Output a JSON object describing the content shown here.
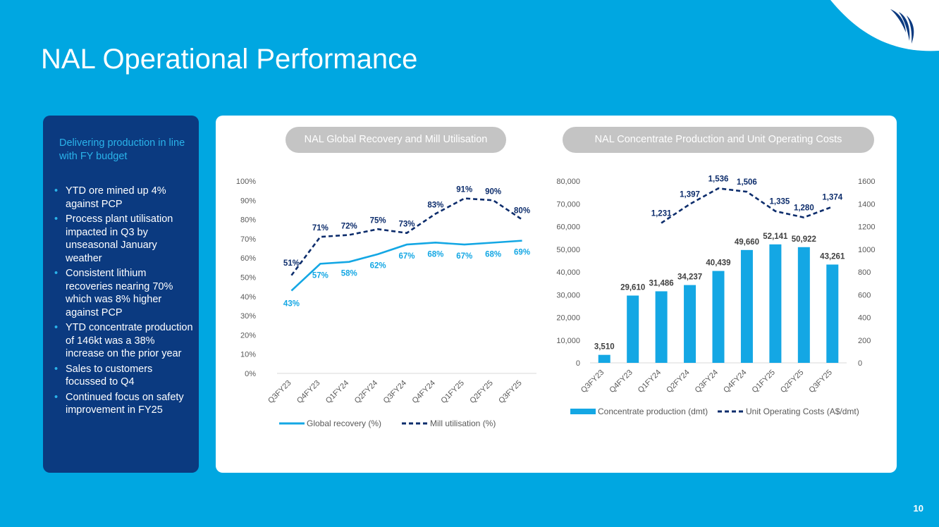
{
  "page": {
    "title": "NAL Operational Performance",
    "page_number": "10"
  },
  "sidebar": {
    "heading": "Delivering production in line with FY budget",
    "bullets": [
      "YTD ore mined up 4% against PCP",
      "Process plant utilisation impacted in Q3 by unseasonal January weather",
      "Consistent lithium recoveries nearing 70% which was 8% higher against PCP",
      "YTD concentrate production of 146kt was a 38% increase on the prior year",
      "Sales to customers focussed to Q4",
      "Continued focus on safety improvement in FY25"
    ]
  },
  "colors": {
    "background": "#00a7e1",
    "navy": "#0b3a80",
    "cyan": "#14a7e4",
    "dark_line": "#0d2d6c"
  },
  "chart_data": [
    {
      "type": "line",
      "title": "NAL Global Recovery and Mill Utilisation",
      "categories": [
        "Q3FY23",
        "Q4FY23",
        "Q1FY24",
        "Q2FY24",
        "Q3FY24",
        "Q4FY24",
        "Q1FY25",
        "Q2FY25",
        "Q3FY25"
      ],
      "yticks": [
        "0%",
        "10%",
        "20%",
        "30%",
        "40%",
        "50%",
        "60%",
        "70%",
        "80%",
        "90%",
        "100%"
      ],
      "ylim": [
        0,
        100
      ],
      "legend_position": "bottom",
      "series": [
        {
          "name": "Global recovery (%)",
          "style": "solid",
          "values": [
            43,
            57,
            58,
            62,
            67,
            68,
            67,
            68,
            69
          ],
          "labels": [
            "43%",
            "57%",
            "58%",
            "62%",
            "67%",
            "68%",
            "67%",
            "68%",
            "69%"
          ]
        },
        {
          "name": "Mill utilisation (%)",
          "style": "dashed",
          "values": [
            51,
            71,
            72,
            75,
            73,
            83,
            91,
            90,
            80
          ],
          "labels": [
            "51%",
            "71%",
            "72%",
            "75%",
            "73%",
            "83%",
            "91%",
            "90%",
            "80%"
          ]
        }
      ]
    },
    {
      "type": "bar+line",
      "title": "NAL Concentrate Production and Unit Operating Costs",
      "categories": [
        "Q3FY23",
        "Q4FY23",
        "Q1FY24",
        "Q2FY24",
        "Q3FY24",
        "Q4FY24",
        "Q1FY25",
        "Q2FY25",
        "Q3FY25"
      ],
      "left_axis": {
        "ylim": [
          0,
          80000
        ],
        "ticks": [
          "0",
          "10,000",
          "20,000",
          "30,000",
          "40,000",
          "50,000",
          "60,000",
          "70,000",
          "80,000"
        ]
      },
      "right_axis": {
        "ylim": [
          0,
          1600
        ],
        "ticks": [
          "0",
          "200",
          "400",
          "600",
          "800",
          "1000",
          "1200",
          "1400",
          "1600"
        ]
      },
      "legend_position": "bottom",
      "series": [
        {
          "name": "Concentrate production (dmt)",
          "type": "bar",
          "axis": "left",
          "values": [
            3510,
            29610,
            31486,
            34237,
            40439,
            49660,
            52141,
            50922,
            43261
          ],
          "labels": [
            "3,510",
            "29,610",
            "31,486",
            "34,237",
            "40,439",
            "49,660",
            "52,141",
            "50,922",
            "43,261"
          ]
        },
        {
          "name": "Unit Operating Costs (A$/dmt)",
          "type": "line",
          "style": "dashed",
          "axis": "right",
          "values": [
            null,
            null,
            1231,
            1397,
            1536,
            1506,
            1335,
            1280,
            1374
          ],
          "labels": [
            "",
            "",
            "1,231",
            "1,397",
            "1,536",
            "1,506",
            "1,335",
            "1,280",
            "1,374"
          ]
        }
      ]
    }
  ]
}
